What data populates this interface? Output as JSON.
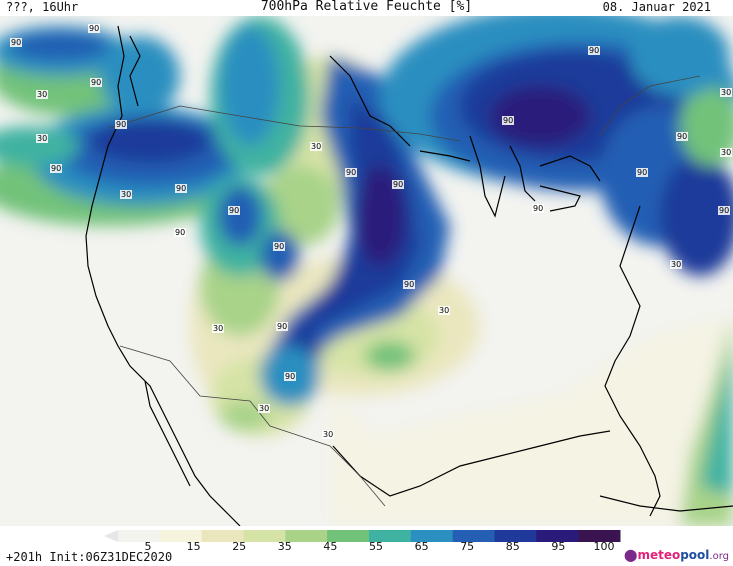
{
  "header": {
    "left": "???, 16Uhr",
    "title": "700hPa Relative Feuchte [%]",
    "date": "08. Januar 2021"
  },
  "footer": {
    "run": "+201h Init:06Z31DEC2020",
    "logo_main": "meteo",
    "logo_pool": "pool",
    "logo_org": ".org"
  },
  "legend": {
    "ticks": [
      "5",
      "15",
      "25",
      "35",
      "45",
      "55",
      "65",
      "75",
      "85",
      "95",
      "100"
    ],
    "colors": [
      "#f3f3f0",
      "#f6f4dc",
      "#eae7bf",
      "#d6e3a6",
      "#a8d389",
      "#72c27a",
      "#3fb2a1",
      "#2b8fc0",
      "#245fb4",
      "#1f3a9a",
      "#2a1b7a",
      "#3a1450"
    ]
  },
  "contour_labels": [
    "90",
    "90",
    "90",
    "90",
    "30",
    "30",
    "90",
    "90",
    "30",
    "90",
    "90",
    "90",
    "90",
    "30",
    "90",
    "90",
    "90",
    "90",
    "30",
    "30",
    "90",
    "30",
    "30",
    "90",
    "30",
    "90",
    "30",
    "90",
    "30",
    "90",
    "90"
  ]
}
